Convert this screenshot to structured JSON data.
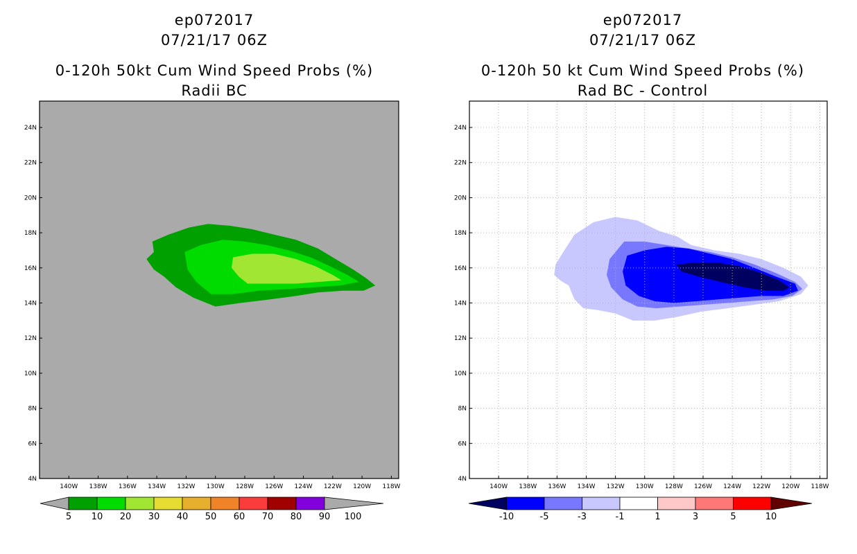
{
  "chart_data": [
    {
      "type": "filled-contour-map",
      "storm_id": "ep072017",
      "datetime": "07/21/17 06Z",
      "title": "0-120h 50kt Cum Wind Speed Probs (%)",
      "subtitle": "Radii BC",
      "background_color": "#aaaaaa",
      "grid": false,
      "lon_range": [
        -142,
        -117.5
      ],
      "lat_range": [
        4,
        25.5
      ],
      "x_ticks": [
        "140W",
        "138W",
        "136W",
        "134W",
        "132W",
        "130W",
        "128W",
        "126W",
        "124W",
        "122W",
        "120W",
        "118W"
      ],
      "y_ticks": [
        "4N",
        "6N",
        "8N",
        "10N",
        "12N",
        "14N",
        "16N",
        "18N",
        "20N",
        "22N",
        "24N"
      ],
      "contours": [
        {
          "level": 5,
          "color": "#00a000",
          "polygon": [
            [
              -134.3,
              17.5
            ],
            [
              -133.2,
              17.9
            ],
            [
              -131.8,
              18.3
            ],
            [
              -130.5,
              18.5
            ],
            [
              -129,
              18.4
            ],
            [
              -127.5,
              18.2
            ],
            [
              -126,
              17.9
            ],
            [
              -124.5,
              17.6
            ],
            [
              -123,
              17.1
            ],
            [
              -121.8,
              16.5
            ],
            [
              -120.6,
              15.9
            ],
            [
              -119.7,
              15.4
            ],
            [
              -119.1,
              15.0
            ],
            [
              -119.9,
              14.7
            ],
            [
              -121.3,
              14.7
            ],
            [
              -123,
              14.6
            ],
            [
              -124.5,
              14.4
            ],
            [
              -126.3,
              14.2
            ],
            [
              -128.3,
              14.0
            ],
            [
              -130,
              13.8
            ],
            [
              -131.5,
              14.3
            ],
            [
              -132.7,
              14.9
            ],
            [
              -133.5,
              15.5
            ],
            [
              -134.2,
              15.9
            ],
            [
              -134.7,
              16.5
            ],
            [
              -134.2,
              16.9
            ]
          ]
        },
        {
          "level": 10,
          "color": "#00dc00",
          "polygon": [
            [
              -132.1,
              16.9
            ],
            [
              -131,
              17.3
            ],
            [
              -129.5,
              17.6
            ],
            [
              -128,
              17.5
            ],
            [
              -126.5,
              17.3
            ],
            [
              -125,
              17.0
            ],
            [
              -123.5,
              16.6
            ],
            [
              -122.2,
              16.1
            ],
            [
              -121,
              15.6
            ],
            [
              -120.2,
              15.2
            ],
            [
              -121.5,
              15.0
            ],
            [
              -123.2,
              14.9
            ],
            [
              -125,
              14.8
            ],
            [
              -127,
              14.7
            ],
            [
              -128.8,
              14.5
            ],
            [
              -130.3,
              14.5
            ],
            [
              -131.3,
              15.2
            ],
            [
              -131.9,
              15.9
            ]
          ]
        },
        {
          "level": 20,
          "color": "#a0e632",
          "polygon": [
            [
              -128.8,
              16.6
            ],
            [
              -127.5,
              16.8
            ],
            [
              -126,
              16.8
            ],
            [
              -124.5,
              16.5
            ],
            [
              -123.2,
              16.1
            ],
            [
              -122,
              15.6
            ],
            [
              -121.4,
              15.3
            ],
            [
              -123,
              15.2
            ],
            [
              -124.5,
              15.1
            ],
            [
              -126.2,
              15.1
            ],
            [
              -127.8,
              15.1
            ],
            [
              -128.4,
              15.5
            ],
            [
              -128.9,
              16.0
            ]
          ]
        }
      ],
      "colorbar": {
        "labels": [
          "5",
          "10",
          "20",
          "30",
          "40",
          "50",
          "60",
          "70",
          "80",
          "90",
          "100"
        ],
        "colors": [
          "#00a000",
          "#00dc00",
          "#a0e632",
          "#e6dc32",
          "#e6af2d",
          "#f08228",
          "#fa3c3c",
          "#a00000",
          "#8200dc"
        ],
        "end_colors": [
          "#aaaaaa",
          "#aaaaaa"
        ]
      }
    },
    {
      "type": "filled-contour-map",
      "storm_id": "ep072017",
      "datetime": "07/21/17 06Z",
      "title": "0-120h 50 kt Cum Wind Speed Probs (%)",
      "subtitle": "Rad BC - Control",
      "background_color": "#ffffff",
      "grid": true,
      "lon_range": [
        -142,
        -117.5
      ],
      "lat_range": [
        4,
        25.5
      ],
      "x_ticks": [
        "140W",
        "138W",
        "136W",
        "134W",
        "132W",
        "130W",
        "128W",
        "126W",
        "124W",
        "122W",
        "120W",
        "118W"
      ],
      "y_ticks": [
        "4N",
        "6N",
        "8N",
        "10N",
        "12N",
        "14N",
        "16N",
        "18N",
        "20N",
        "22N",
        "24N"
      ],
      "contours": [
        {
          "level": -1,
          "color": "#c8c8ff",
          "polygon": [
            [
              -136.1,
              16.2
            ],
            [
              -135.5,
              17.0
            ],
            [
              -134.8,
              17.9
            ],
            [
              -133.5,
              18.6
            ],
            [
              -132,
              18.9
            ],
            [
              -130.5,
              18.7
            ],
            [
              -129,
              18.1
            ],
            [
              -127.8,
              17.8
            ],
            [
              -126.8,
              17.3
            ],
            [
              -125.2,
              17.0
            ],
            [
              -123.5,
              16.8
            ],
            [
              -122,
              16.5
            ],
            [
              -120.5,
              16.0
            ],
            [
              -119.3,
              15.5
            ],
            [
              -118.8,
              15.0
            ],
            [
              -119.3,
              14.5
            ],
            [
              -120.8,
              14.1
            ],
            [
              -122.5,
              13.9
            ],
            [
              -124.3,
              13.7
            ],
            [
              -126.2,
              13.5
            ],
            [
              -127.8,
              13.2
            ],
            [
              -129.3,
              13.0
            ],
            [
              -130.8,
              13.0
            ],
            [
              -132,
              13.4
            ],
            [
              -133.2,
              13.6
            ],
            [
              -134.2,
              13.7
            ],
            [
              -134.8,
              14.2
            ],
            [
              -135.2,
              15.0
            ],
            [
              -135.8,
              15.3
            ],
            [
              -136.2,
              15.6
            ]
          ]
        },
        {
          "level": -3,
          "color": "#7878ff",
          "polygon": [
            [
              -131.4,
              17.5
            ],
            [
              -130,
              17.5
            ],
            [
              -128.5,
              17.3
            ],
            [
              -127,
              17.1
            ],
            [
              -125.5,
              16.9
            ],
            [
              -124,
              16.6
            ],
            [
              -122.5,
              16.2
            ],
            [
              -121,
              15.7
            ],
            [
              -119.7,
              15.2
            ],
            [
              -119.2,
              14.8
            ],
            [
              -119.9,
              14.4
            ],
            [
              -121.2,
              14.2
            ],
            [
              -122.8,
              14.1
            ],
            [
              -124.3,
              14.0
            ],
            [
              -126,
              13.9
            ],
            [
              -127.6,
              13.8
            ],
            [
              -129.2,
              13.7
            ],
            [
              -130.5,
              13.8
            ],
            [
              -131.5,
              14.2
            ],
            [
              -132.3,
              14.9
            ],
            [
              -132.6,
              15.6
            ],
            [
              -132.4,
              16.5
            ]
          ]
        },
        {
          "level": -5,
          "color": "#0000ff",
          "polygon": [
            [
              -131.2,
              16.7
            ],
            [
              -130,
              17.0
            ],
            [
              -128.5,
              17.2
            ],
            [
              -127,
              17.1
            ],
            [
              -125.5,
              16.8
            ],
            [
              -124,
              16.5
            ],
            [
              -122.5,
              16.0
            ],
            [
              -121,
              15.5
            ],
            [
              -119.7,
              15.1
            ],
            [
              -119.5,
              14.7
            ],
            [
              -120.5,
              14.4
            ],
            [
              -122,
              14.4
            ],
            [
              -123.5,
              14.3
            ],
            [
              -125,
              14.2
            ],
            [
              -126.5,
              14.1
            ],
            [
              -128,
              14.0
            ],
            [
              -129.3,
              14.1
            ],
            [
              -130.4,
              14.4
            ],
            [
              -131.3,
              15.0
            ],
            [
              -131.5,
              15.8
            ]
          ]
        },
        {
          "level": -10,
          "color": "#000060",
          "polygon": [
            [
              -127.8,
              16.2
            ],
            [
              -126.5,
              16.3
            ],
            [
              -125,
              16.3
            ],
            [
              -123.5,
              16.1
            ],
            [
              -122,
              15.7
            ],
            [
              -120.8,
              15.3
            ],
            [
              -120.1,
              14.9
            ],
            [
              -120.5,
              14.7
            ],
            [
              -121.8,
              14.7
            ],
            [
              -123.2,
              14.9
            ],
            [
              -124.8,
              15.2
            ],
            [
              -126.3,
              15.5
            ],
            [
              -127.5,
              15.8
            ]
          ]
        }
      ],
      "colorbar": {
        "labels": [
          "-10",
          "-5",
          "-3",
          "-1",
          "1",
          "3",
          "5",
          "10"
        ],
        "colors": [
          "#0000ff",
          "#7878ff",
          "#c8c8ff",
          "#ffffff",
          "#ffc8c8",
          "#ff7878",
          "#ff0000"
        ],
        "end_colors": [
          "#000060",
          "#600000"
        ]
      }
    }
  ]
}
